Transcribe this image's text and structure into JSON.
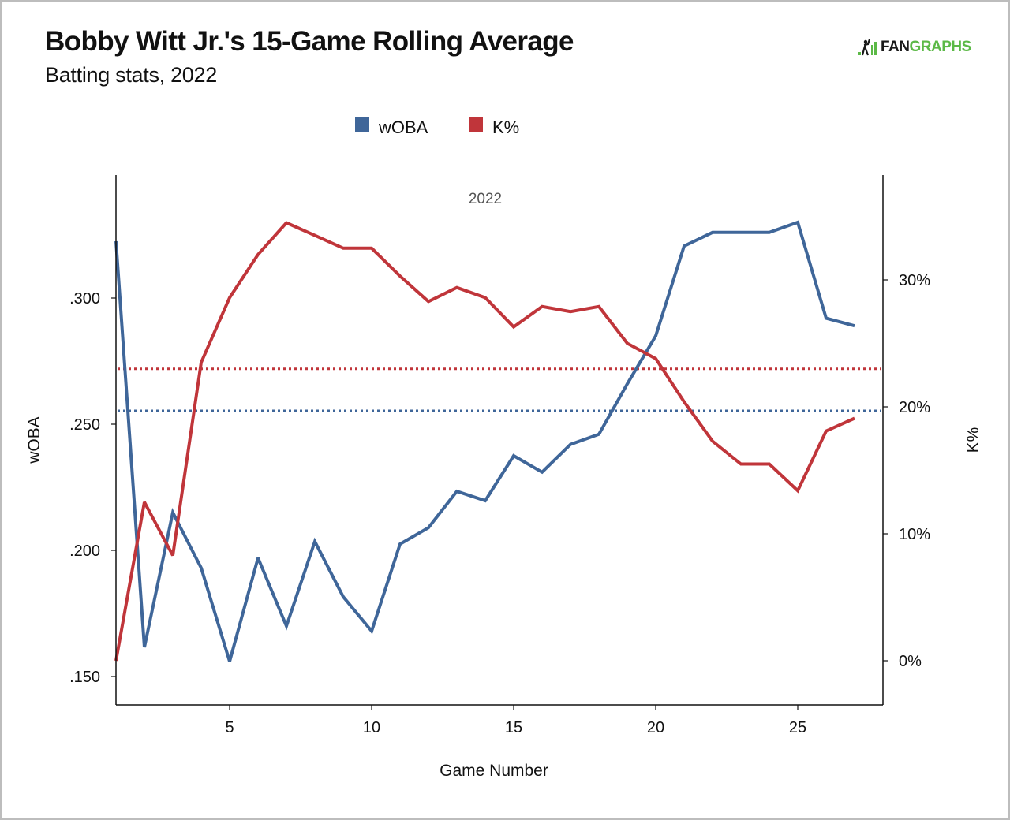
{
  "header": {
    "title": "Bobby Witt Jr.'s 15-Game Rolling Average",
    "subtitle": "Batting stats, 2022",
    "logo": {
      "icon": "batter-bars-icon",
      "text_dark": "FAN",
      "text_green": "GRAPHS",
      "colors": {
        "dark": "#1a1a1a",
        "green": "#5cb947"
      }
    }
  },
  "chart_data": {
    "type": "line",
    "title": "Bobby Witt Jr.'s 15-Game Rolling Average",
    "subtitle": "Batting stats, 2022",
    "panel_label": "2022",
    "xlabel": "Game Number",
    "ylabel": "wOBA",
    "y2label": "K%",
    "xlim": [
      1,
      28
    ],
    "ylim": [
      0.139,
      0.345
    ],
    "y2lim": [
      -3.5,
      38.3
    ],
    "x_ticks": [
      5,
      10,
      15,
      20,
      25
    ],
    "x_tick_labels": [
      "5",
      "10",
      "15",
      "20",
      "25"
    ],
    "y_ticks": [
      0.15,
      0.2,
      0.25,
      0.3
    ],
    "y_tick_labels": [
      ".150",
      ".200",
      ".250",
      ".300"
    ],
    "y2_ticks": [
      0,
      10,
      20,
      30
    ],
    "y2_tick_labels": [
      "0%",
      "10%",
      "20%",
      "30%"
    ],
    "grid": false,
    "legend": {
      "placement": "top-center"
    },
    "x": [
      1,
      2,
      3,
      4,
      5,
      6,
      7,
      8,
      9,
      10,
      11,
      12,
      13,
      14,
      15,
      16,
      17,
      18,
      19,
      20,
      21,
      22,
      23,
      24,
      25,
      26,
      27
    ],
    "series": [
      {
        "name": "wOBA",
        "axis": "left",
        "color": "#3f6699",
        "values": [
          0.3225,
          0.1616,
          0.215,
          0.193,
          0.156,
          0.197,
          0.17,
          0.2035,
          0.1816,
          0.168,
          0.2025,
          0.209,
          0.2234,
          0.2197,
          0.2375,
          0.231,
          0.242,
          0.246,
          0.266,
          0.285,
          0.3206,
          0.326,
          0.326,
          0.326,
          0.33,
          0.292,
          0.289
        ]
      },
      {
        "name": "K%",
        "axis": "right",
        "color": "#c0353a",
        "values": [
          0.0,
          12.5,
          8.3,
          23.5,
          28.6,
          32.0,
          34.5,
          33.5,
          32.5,
          32.5,
          30.3,
          28.3,
          29.4,
          28.6,
          26.3,
          27.9,
          27.5,
          27.9,
          25.0,
          23.8,
          20.4,
          17.3,
          15.5,
          15.5,
          13.4,
          18.1,
          19.1
        ]
      }
    ],
    "reference_lines": [
      {
        "name": "wOBA average",
        "axis": "left",
        "value": 0.2553,
        "color": "#3f6699",
        "style": "dotted"
      },
      {
        "name": "K% average",
        "axis": "right",
        "value": 23.0,
        "color": "#c0353a",
        "style": "dotted"
      }
    ]
  }
}
